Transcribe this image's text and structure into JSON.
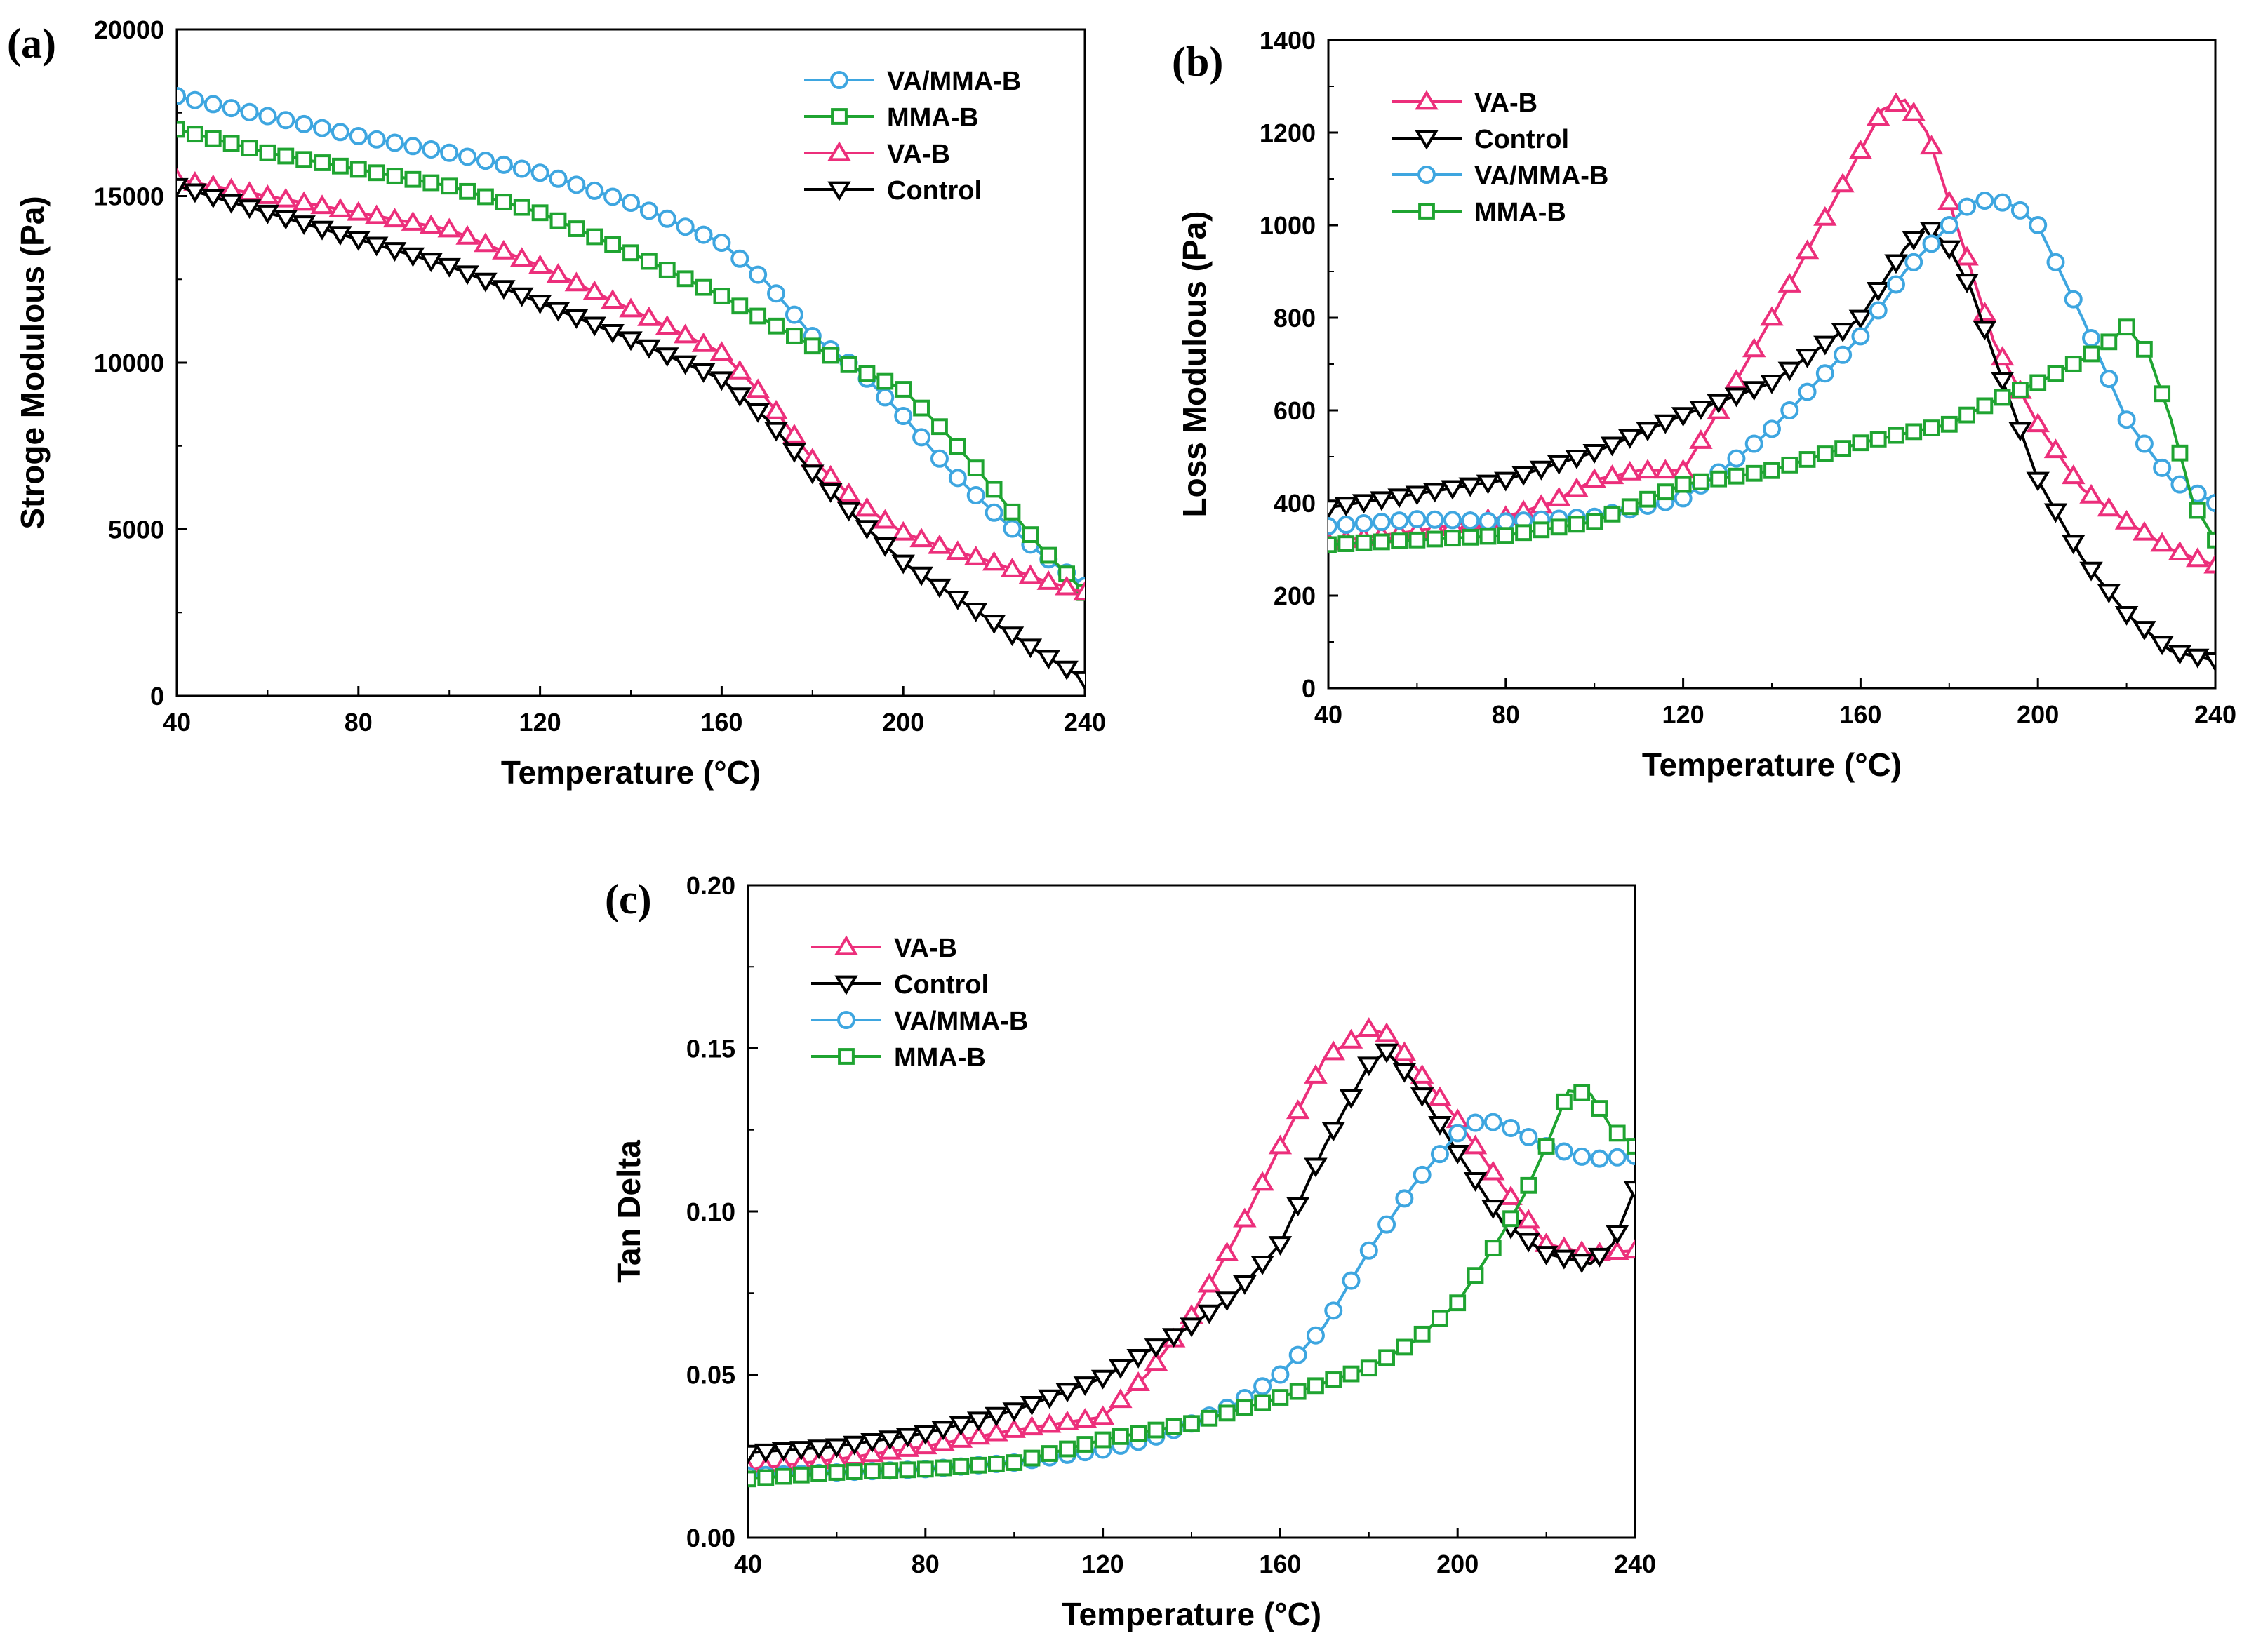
{
  "colors": {
    "VA/MMA-B": "#3ea6e0",
    "MMA-B": "#1fa431",
    "VA-B": "#ec2f7b",
    "Control": "#000000"
  },
  "markers": {
    "VA/MMA-B": "circle",
    "MMA-B": "square",
    "VA-B": "triangle-up",
    "Control": "triangle-down"
  },
  "chart_data": [
    {
      "id": "a",
      "panel_label": "(a)",
      "type": "line",
      "xlabel": "Temperature (°C)",
      "ylabel": "Stroge Modulous (Pa)",
      "xlim": [
        40,
        240
      ],
      "ylim": [
        0,
        20000
      ],
      "xticks": [
        "40",
        "80",
        "120",
        "160",
        "200",
        "240"
      ],
      "yticks": [
        "0",
        "5000",
        "10000",
        "15000",
        "20000"
      ],
      "legend_position": "top-right",
      "legend_order": [
        "VA/MMA-B",
        "MMA-B",
        "VA-B",
        "Control"
      ],
      "series": [
        {
          "name": "VA/MMA-B",
          "x": [
            40,
            60,
            80,
            100,
            120,
            140,
            160,
            170,
            180,
            190,
            200,
            210,
            220,
            230,
            240
          ],
          "y": [
            18000,
            17400,
            16800,
            16300,
            15700,
            14800,
            13600,
            12400,
            10800,
            9800,
            8400,
            6800,
            5500,
            4300,
            3300
          ]
        },
        {
          "name": "MMA-B",
          "x": [
            40,
            60,
            80,
            100,
            120,
            140,
            160,
            180,
            190,
            200,
            210,
            220,
            230,
            240
          ],
          "y": [
            17000,
            16300,
            15800,
            15300,
            14500,
            13300,
            12000,
            10500,
            9800,
            9200,
            7800,
            6200,
            4500,
            3100
          ]
        },
        {
          "name": "VA-B",
          "x": [
            40,
            60,
            80,
            100,
            120,
            140,
            160,
            170,
            180,
            190,
            200,
            210,
            220,
            230,
            240
          ],
          "y": [
            15500,
            15000,
            14500,
            14000,
            12900,
            11600,
            10300,
            8900,
            7100,
            5800,
            4900,
            4400,
            4000,
            3500,
            3100
          ]
        },
        {
          "name": "Control",
          "x": [
            40,
            60,
            80,
            100,
            120,
            140,
            160,
            170,
            180,
            190,
            200,
            210,
            220,
            230,
            240
          ],
          "y": [
            15300,
            14500,
            13700,
            12900,
            11800,
            10700,
            9500,
            8300,
            6700,
            5300,
            4000,
            3100,
            2200,
            1300,
            500
          ]
        }
      ]
    },
    {
      "id": "b",
      "panel_label": "(b)",
      "type": "line",
      "xlabel": "Temperature (°C)",
      "ylabel": "Loss Modulous (Pa)",
      "xlim": [
        40,
        240
      ],
      "ylim": [
        0,
        1400
      ],
      "xticks": [
        "40",
        "80",
        "120",
        "160",
        "200",
        "240"
      ],
      "yticks": [
        "0",
        "200",
        "400",
        "600",
        "800",
        "1000",
        "1200",
        "1400"
      ],
      "legend_position": "top-left",
      "legend_order": [
        "VA-B",
        "Control",
        "VA/MMA-B",
        "MMA-B"
      ],
      "series": [
        {
          "name": "VA-B",
          "x": [
            40,
            60,
            80,
            90,
            100,
            110,
            120,
            130,
            140,
            150,
            160,
            165,
            170,
            175,
            180,
            185,
            190,
            200,
            210,
            220,
            230,
            240
          ],
          "y": [
            315,
            340,
            370,
            400,
            450,
            470,
            470,
            630,
            800,
            980,
            1160,
            1250,
            1270,
            1200,
            1050,
            900,
            750,
            570,
            430,
            360,
            300,
            265
          ]
        },
        {
          "name": "Control",
          "x": [
            40,
            60,
            80,
            100,
            120,
            140,
            160,
            170,
            175,
            180,
            185,
            190,
            200,
            210,
            220,
            230,
            240
          ],
          "y": [
            390,
            420,
            450,
            510,
            590,
            660,
            800,
            950,
            1000,
            950,
            860,
            720,
            450,
            280,
            160,
            80,
            60
          ]
        },
        {
          "name": "VA/MMA-B",
          "x": [
            40,
            60,
            80,
            100,
            120,
            130,
            140,
            150,
            160,
            170,
            180,
            185,
            190,
            195,
            200,
            210,
            220,
            230,
            240
          ],
          "y": [
            350,
            365,
            360,
            370,
            410,
            480,
            560,
            660,
            760,
            900,
            1000,
            1050,
            1055,
            1040,
            1000,
            800,
            580,
            450,
            400
          ]
        },
        {
          "name": "MMA-B",
          "x": [
            40,
            60,
            80,
            100,
            120,
            140,
            160,
            180,
            190,
            200,
            210,
            215,
            220,
            225,
            230,
            235,
            240
          ],
          "y": [
            310,
            320,
            330,
            360,
            440,
            470,
            530,
            570,
            620,
            660,
            710,
            740,
            780,
            720,
            580,
            400,
            320
          ]
        }
      ]
    },
    {
      "id": "c",
      "panel_label": "(c)",
      "type": "line",
      "xlabel": "Temperature (°C)",
      "ylabel": "Tan Delta",
      "xlim": [
        40,
        240
      ],
      "ylim": [
        0,
        0.2
      ],
      "xticks": [
        "40",
        "80",
        "120",
        "160",
        "200",
        "240"
      ],
      "yticks": [
        "0.00",
        "0.05",
        "0.10",
        "0.15",
        "0.20"
      ],
      "legend_position": "top-left",
      "legend_order": [
        "VA-B",
        "Control",
        "VA/MMA-B",
        "MMA-B"
      ],
      "series": [
        {
          "name": "VA-B",
          "x": [
            40,
            60,
            80,
            100,
            120,
            130,
            140,
            150,
            160,
            170,
            180,
            185,
            190,
            200,
            210,
            220,
            230,
            240
          ],
          "y": [
            0.021,
            0.024,
            0.028,
            0.033,
            0.037,
            0.05,
            0.068,
            0.092,
            0.12,
            0.147,
            0.156,
            0.154,
            0.145,
            0.128,
            0.108,
            0.09,
            0.087,
            0.088
          ]
        },
        {
          "name": "Control",
          "x": [
            40,
            60,
            80,
            100,
            120,
            130,
            140,
            150,
            160,
            170,
            180,
            184,
            190,
            200,
            210,
            220,
            230,
            235,
            240
          ],
          "y": [
            0.026,
            0.028,
            0.032,
            0.039,
            0.049,
            0.057,
            0.065,
            0.075,
            0.09,
            0.12,
            0.145,
            0.149,
            0.14,
            0.118,
            0.097,
            0.087,
            0.084,
            0.09,
            0.107
          ]
        },
        {
          "name": "VA/MMA-B",
          "x": [
            40,
            60,
            80,
            100,
            120,
            130,
            140,
            150,
            160,
            170,
            180,
            190,
            200,
            205,
            210,
            220,
            230,
            240
          ],
          "y": [
            0.019,
            0.02,
            0.021,
            0.023,
            0.027,
            0.03,
            0.035,
            0.041,
            0.05,
            0.065,
            0.088,
            0.108,
            0.124,
            0.128,
            0.127,
            0.12,
            0.116,
            0.117
          ]
        },
        {
          "name": "MMA-B",
          "x": [
            40,
            60,
            80,
            100,
            120,
            140,
            160,
            180,
            190,
            200,
            210,
            215,
            220,
            225,
            230,
            235,
            240
          ],
          "y": [
            0.018,
            0.02,
            0.021,
            0.023,
            0.03,
            0.035,
            0.043,
            0.052,
            0.06,
            0.072,
            0.093,
            0.105,
            0.12,
            0.137,
            0.136,
            0.125,
            0.12
          ]
        }
      ]
    }
  ]
}
